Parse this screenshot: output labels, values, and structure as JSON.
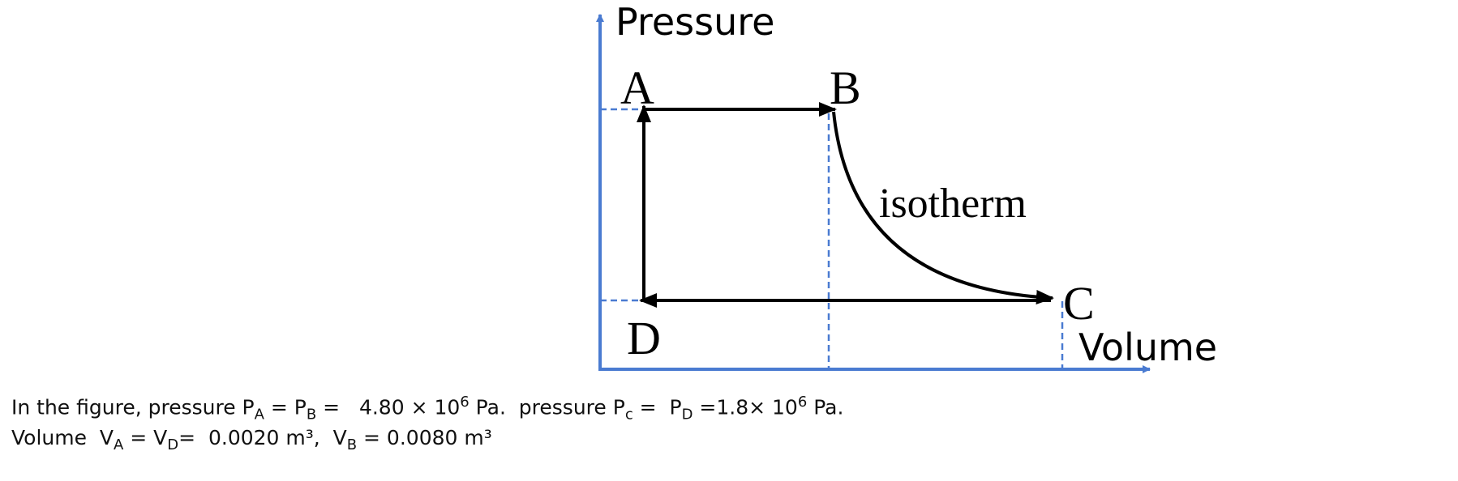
{
  "diagram": {
    "axis_y_label": "Pressure",
    "axis_x_label": "Volume",
    "points": [
      "A",
      "B",
      "C",
      "D"
    ],
    "curve_label": "isotherm"
  },
  "text": {
    "line1": [
      "In the figure, pressure P",
      "A",
      " = P",
      "B",
      " =   4.80 × 10",
      "6",
      " Pa.  pressure P",
      "c",
      " =  P",
      "D",
      " =1.8× 10",
      "6",
      " Pa."
    ],
    "line2": [
      "Volume  V",
      "A",
      " = V",
      "D",
      "=  0.0020 m³,  V",
      "B",
      " = 0.0080 m³"
    ]
  }
}
